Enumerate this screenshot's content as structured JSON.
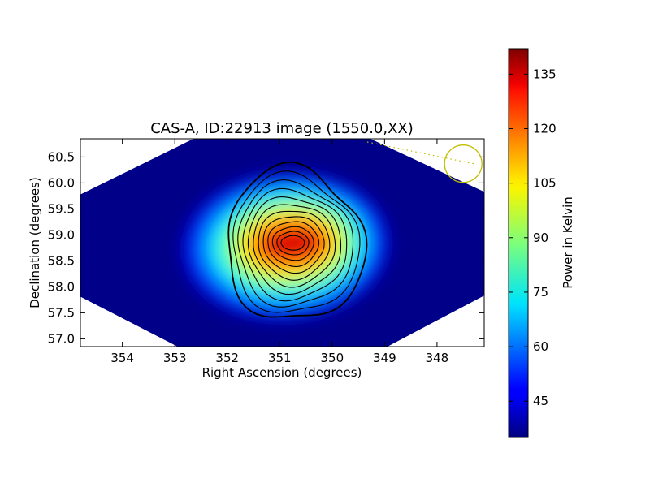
{
  "chart_data": {
    "type": "heatmap",
    "title": "CAS-A, ID:22913 image (1550.0,XX)",
    "xlabel": "Right Ascension (degrees)",
    "ylabel": "Declination (degrees)",
    "xlim": [
      354.8,
      347.1
    ],
    "ylim": [
      56.85,
      60.85
    ],
    "x_ticks": [
      354,
      353,
      352,
      351,
      350,
      349,
      348
    ],
    "x_tick_labels": [
      "354",
      "353",
      "352",
      "351",
      "350",
      "349",
      "348"
    ],
    "y_ticks": [
      57.0,
      57.5,
      58.0,
      58.5,
      59.0,
      59.5,
      60.0,
      60.5
    ],
    "y_tick_labels": [
      "57.0",
      "57.5",
      "58.0",
      "58.5",
      "59.0",
      "59.5",
      "60.0",
      "60.5"
    ],
    "colorbar": {
      "label": "Power in Kelvin",
      "colormap": "jet",
      "range": [
        35,
        142
      ],
      "ticks": [
        45,
        60,
        75,
        90,
        105,
        120,
        135
      ],
      "tick_labels": [
        "45",
        "60",
        "75",
        "90",
        "105",
        "120",
        "135"
      ]
    },
    "source": {
      "peak_ra": 350.75,
      "peak_dec": 58.85,
      "peak_value": 140,
      "background_value": 36,
      "contour_count": 12
    },
    "beam_marker": {
      "ra": 347.5,
      "dec": 60.37,
      "color": "#bfbf00"
    }
  }
}
